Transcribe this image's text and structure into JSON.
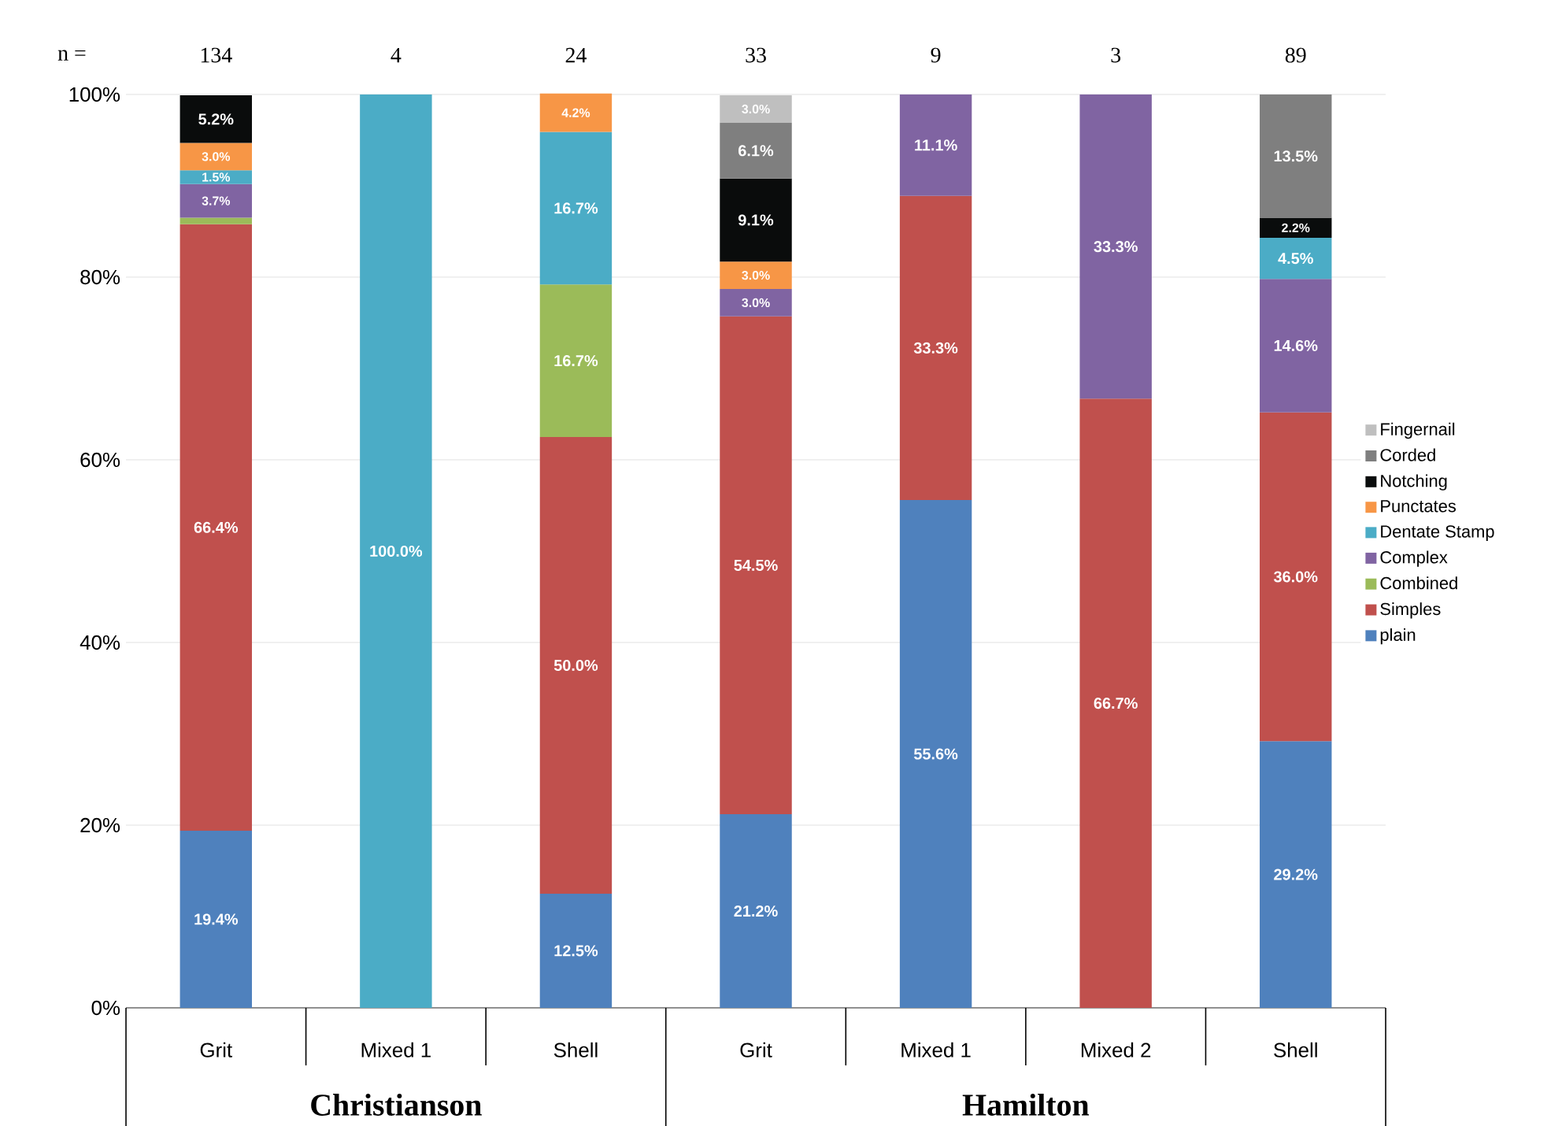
{
  "chart_data": {
    "type": "bar",
    "stacked": true,
    "categories": [
      "Grit",
      "Mixed 1",
      "Shell",
      "Grit",
      "Mixed 1",
      "Mixed 2",
      "Shell"
    ],
    "annotations": [
      "n =",
      "134",
      "4",
      "24",
      "33",
      "9",
      "3",
      "89",
      "Christianson",
      "Hamilton"
    ],
    "ylim": [
      0,
      100
    ],
    "yticks": [
      {
        "value": 0,
        "label": "0%"
      },
      {
        "value": 20,
        "label": "20%"
      },
      {
        "value": 40,
        "label": "40%"
      },
      {
        "value": 60,
        "label": "60%"
      },
      {
        "value": 80,
        "label": "80%"
      },
      {
        "value": 100,
        "label": "100%"
      }
    ],
    "grid": "y",
    "legend": "right",
    "series": [
      {
        "name": "plain",
        "color": "#4f81bd",
        "values": [
          19.4,
          null,
          12.5,
          21.2,
          55.6,
          null,
          29.2
        ],
        "value_labels": [
          "19.4%",
          null,
          "12.5%",
          "21.2%",
          "55.6%",
          null,
          "29.2%"
        ]
      },
      {
        "name": "Simples",
        "color": "#c0504d",
        "values": [
          66.4,
          null,
          50.0,
          54.5,
          33.3,
          66.7,
          36.0
        ],
        "value_labels": [
          "66.4%",
          null,
          "50.0%",
          "54.5%",
          "33.3%",
          "66.7%",
          "36.0%"
        ]
      },
      {
        "name": "Combined",
        "color": "#9bbb59",
        "values": [
          0.7,
          null,
          16.7,
          null,
          null,
          null,
          null
        ],
        "value_labels": [
          null,
          null,
          "16.7%",
          null,
          null,
          null,
          null
        ]
      },
      {
        "name": "Complex",
        "color": "#8064a2",
        "values": [
          3.7,
          null,
          null,
          3.0,
          11.1,
          33.3,
          14.6
        ],
        "value_labels": [
          "3.7%",
          null,
          null,
          "3.0%",
          "11.1%",
          "33.3%",
          "14.6%"
        ]
      },
      {
        "name": "Dentate Stamp",
        "color": "#4bacc6",
        "values": [
          1.5,
          100.0,
          16.7,
          null,
          null,
          null,
          4.5
        ],
        "value_labels": [
          "1.5%",
          "100.0%",
          "16.7%",
          null,
          null,
          null,
          "4.5%"
        ]
      },
      {
        "name": "Punctates",
        "color": "#f79646",
        "values": [
          3.0,
          null,
          4.2,
          3.0,
          null,
          null,
          null
        ],
        "value_labels": [
          "3.0%",
          null,
          "4.2%",
          "3.0%",
          null,
          null,
          null
        ]
      },
      {
        "name": "Notching",
        "color": "#0a0c0c",
        "values": [
          5.2,
          null,
          null,
          9.1,
          null,
          null,
          2.2
        ],
        "value_labels": [
          "5.2%",
          null,
          null,
          "9.1%",
          null,
          null,
          "2.2%"
        ]
      },
      {
        "name": "Corded",
        "color": "#7f7f7f",
        "values": [
          null,
          null,
          null,
          6.1,
          null,
          null,
          13.5
        ],
        "value_labels": [
          null,
          null,
          null,
          "6.1%",
          null,
          null,
          "13.5%"
        ]
      },
      {
        "name": "Fingernail",
        "color": "#bfbfbf",
        "values": [
          null,
          null,
          null,
          3.0,
          null,
          null,
          null
        ],
        "value_labels": [
          null,
          null,
          null,
          "3.0%",
          null,
          null,
          null
        ]
      }
    ]
  }
}
